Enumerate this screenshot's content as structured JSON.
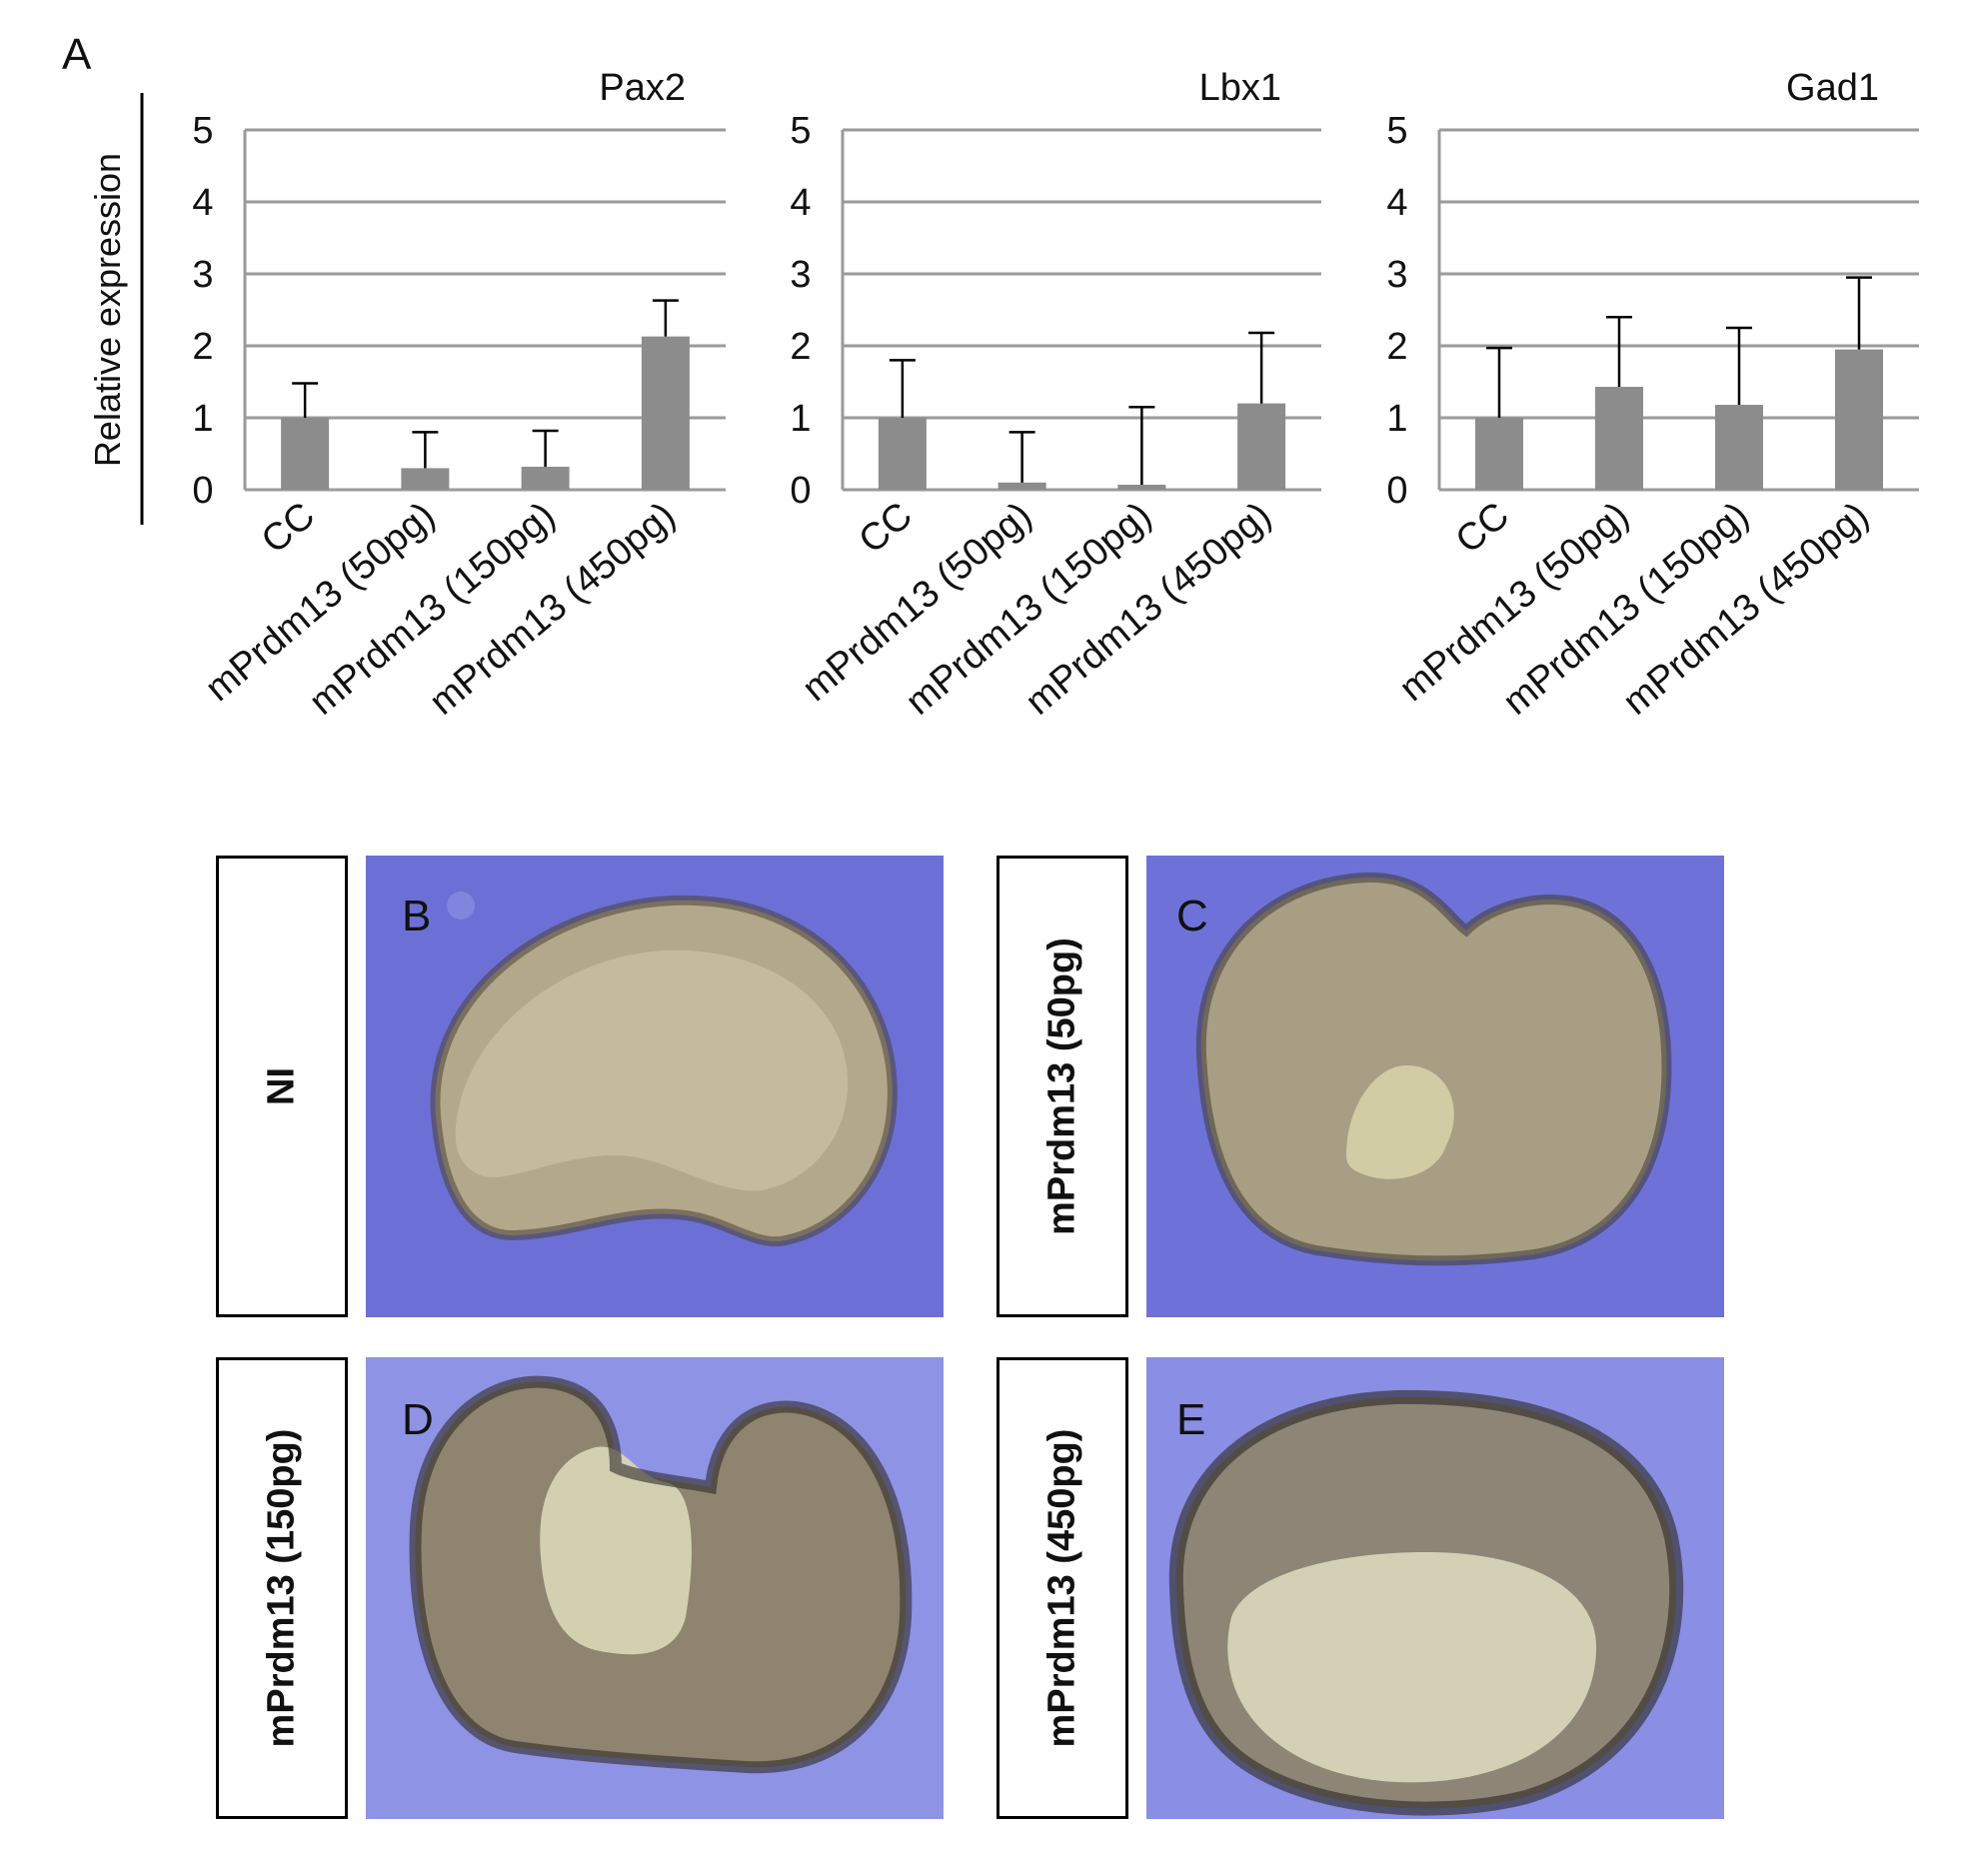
{
  "panel_labels": {
    "a": "A",
    "b": "B",
    "c": "C",
    "d": "D",
    "e": "E"
  },
  "colors": {
    "bar": "#8c8c8c",
    "grid": "#9a9a9a",
    "error": "#000000",
    "background_blue": "#6f73d8"
  },
  "chart_data": [
    {
      "type": "bar",
      "title": "Pax2",
      "ylabel": "Relative expression",
      "categories": [
        "CC",
        "mPrdm13 (50pg)",
        "mPrdm13 (150pg)",
        "mPrdm13 (450pg)"
      ],
      "values": [
        1.0,
        0.3,
        0.32,
        2.13
      ],
      "error_upper": [
        1.48,
        0.8,
        0.82,
        2.63
      ],
      "ylim": [
        0,
        5
      ],
      "yticks": [
        "0",
        "1",
        "2",
        "3",
        "4",
        "5"
      ],
      "grid": true
    },
    {
      "type": "bar",
      "title": "Lbx1",
      "ylabel": "",
      "categories": [
        "CC",
        "mPrdm13 (50pg)",
        "mPrdm13 (150pg)",
        "mPrdm13 (450pg)"
      ],
      "values": [
        1.0,
        0.1,
        0.07,
        1.2
      ],
      "error_upper": [
        1.8,
        0.8,
        1.15,
        2.18
      ],
      "ylim": [
        0,
        5
      ],
      "yticks": [
        "0",
        "1",
        "2",
        "3",
        "4",
        "5"
      ],
      "grid": true
    },
    {
      "type": "bar",
      "title": "Gad1",
      "ylabel": "",
      "categories": [
        "CC",
        "mPrdm13 (50pg)",
        "mPrdm13 (150pg)",
        "mPrdm13 (450pg)"
      ],
      "values": [
        1.0,
        1.43,
        1.18,
        1.95
      ],
      "error_upper": [
        1.97,
        2.4,
        2.25,
        2.95
      ],
      "ylim": [
        0,
        5
      ],
      "yticks": [
        "0",
        "1",
        "2",
        "3",
        "4",
        "5"
      ],
      "grid": true
    }
  ],
  "image_panels": [
    {
      "letter": "B",
      "condition": "NI"
    },
    {
      "letter": "C",
      "condition": "mPrdm13 (50pg)"
    },
    {
      "letter": "D",
      "condition": "mPrdm13 (150pg)"
    },
    {
      "letter": "E",
      "condition": "mPrdm13 (450pg)"
    }
  ]
}
